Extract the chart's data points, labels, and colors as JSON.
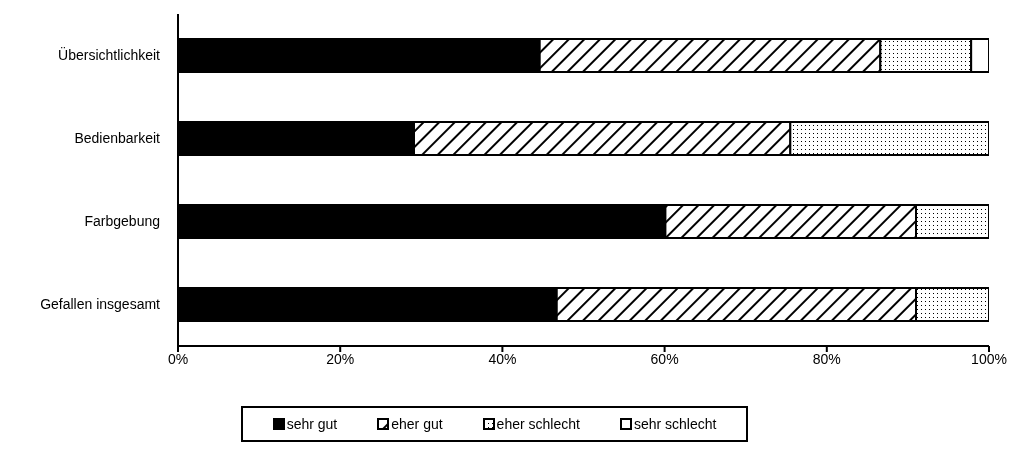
{
  "chart_data": {
    "type": "bar",
    "orientation": "horizontal",
    "stacked": true,
    "categories": [
      "Übersichtlichkeit",
      "Bedienbarkeit",
      "Farbgebung",
      "Gefallen insgesamt"
    ],
    "series": [
      {
        "name": "sehr gut",
        "color": "#000000",
        "values": [
          44.6,
          29.1,
          60.1,
          46.7
        ]
      },
      {
        "name": "eher gut",
        "color": "#000000",
        "values": [
          42.0,
          46.4,
          30.9,
          44.3
        ]
      },
      {
        "name": "eher schlecht",
        "color": "#000000",
        "values": [
          11.2,
          24.5,
          9.0,
          9.0
        ]
      },
      {
        "name": "sehr schlecht",
        "color": "#ffffff",
        "values": [
          2.2,
          0,
          0,
          0
        ]
      }
    ],
    "xlim": [
      0,
      100
    ],
    "xticks": [
      {
        "value": 0,
        "label": "0%"
      },
      {
        "value": 20,
        "label": "20%"
      },
      {
        "value": 40,
        "label": "40%"
      },
      {
        "value": 60,
        "label": "60%"
      },
      {
        "value": 80,
        "label": "80%"
      },
      {
        "value": 100,
        "label": "100%"
      }
    ],
    "grid": false,
    "legend": "bottom"
  }
}
